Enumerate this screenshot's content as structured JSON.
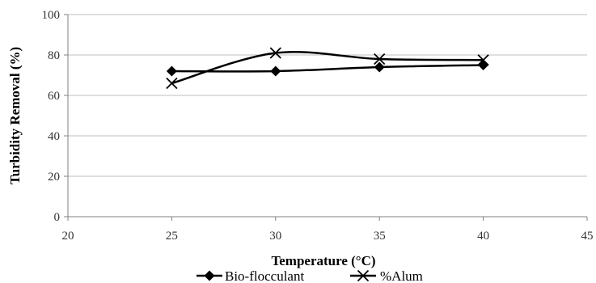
{
  "chart_data": {
    "type": "scatter",
    "title": "",
    "xlabel": "Temperature (°C)",
    "ylabel": "Turbidity Removal (%)",
    "xlim": [
      20,
      45
    ],
    "ylim": [
      0,
      100
    ],
    "xticks": [
      20,
      25,
      30,
      35,
      40,
      45
    ],
    "yticks": [
      0,
      20,
      40,
      60,
      80,
      100
    ],
    "grid": "horizontal",
    "legend_position": "bottom",
    "smooth": true,
    "series": [
      {
        "name": "Bio-flocculant",
        "marker": "diamond",
        "color": "#000000",
        "x": [
          25,
          30,
          35,
          40
        ],
        "y": [
          72,
          72,
          74,
          75
        ]
      },
      {
        "name": "%Alum",
        "marker": "x",
        "color": "#000000",
        "x": [
          25,
          30,
          35,
          40
        ],
        "y": [
          66,
          81,
          78,
          77.5
        ]
      }
    ]
  }
}
